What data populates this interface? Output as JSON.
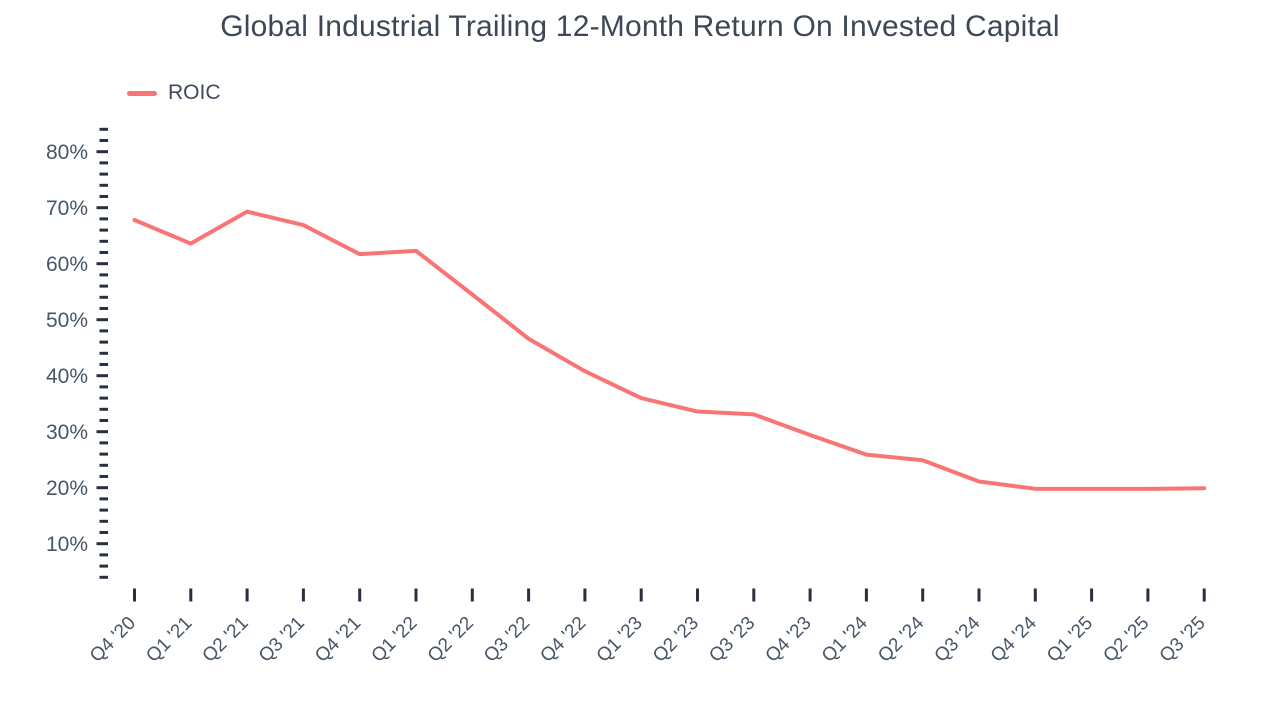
{
  "chart": {
    "title": "Global Industrial Trailing 12-Month Return On Invested Capital",
    "legend": [
      {
        "label": "ROIC",
        "color": "#f97575"
      }
    ]
  },
  "chart_data": {
    "type": "line",
    "title": "Global Industrial Trailing 12-Month Return On Invested Capital",
    "xlabel": "",
    "ylabel": "",
    "categories": [
      "Q4 '20",
      "Q1 '21",
      "Q2 '21",
      "Q3 '21",
      "Q4 '21",
      "Q1 '22",
      "Q2 '22",
      "Q3 '22",
      "Q4 '22",
      "Q1 '23",
      "Q2 '23",
      "Q3 '23",
      "Q4 '23",
      "Q1 '24",
      "Q2 '24",
      "Q3 '24",
      "Q4 '24",
      "Q1 '25",
      "Q2 '25",
      "Q3 '25"
    ],
    "series": [
      {
        "name": "ROIC",
        "color": "#f97575",
        "values": [
          67.8,
          63.6,
          69.3,
          66.9,
          61.7,
          62.3,
          54.5,
          46.6,
          40.8,
          36.0,
          33.6,
          33.1,
          29.4,
          25.9,
          24.9,
          21.1,
          19.8,
          19.8,
          19.8,
          19.9
        ]
      }
    ],
    "ylim": [
      4,
      84
    ],
    "y_major_ticks": [
      10,
      20,
      30,
      40,
      50,
      60,
      70,
      80
    ],
    "y_minor_step": 2,
    "y_tick_suffix": "%",
    "grid": false,
    "legend_position": "top-left",
    "colors": {
      "axis_tick": "#273142",
      "axis_label": "#475569",
      "title": "#3d4857",
      "background": "#ffffff"
    }
  }
}
